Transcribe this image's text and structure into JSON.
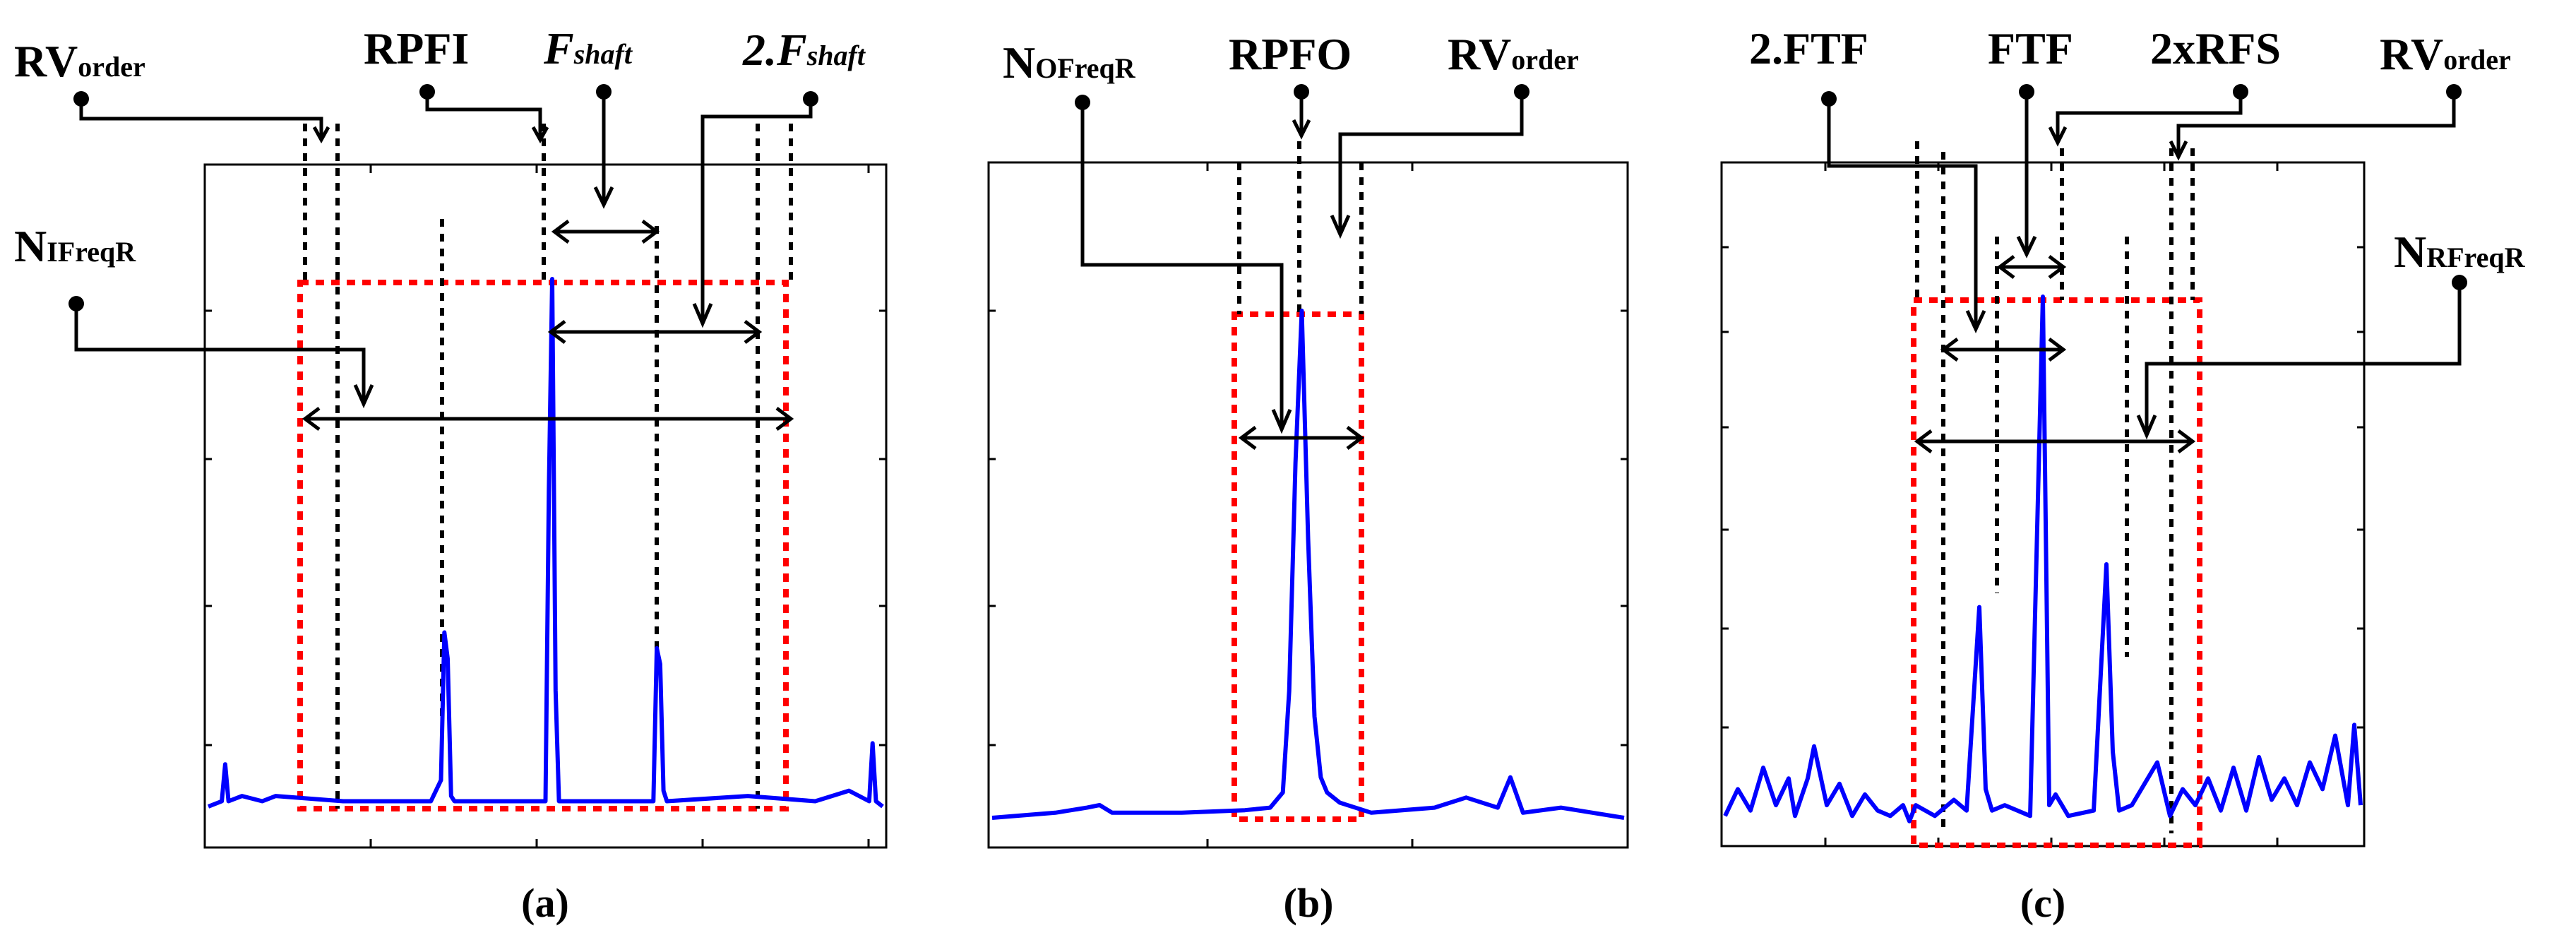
{
  "figure": {
    "colors": {
      "spectrum": "#0000ff",
      "region": "#ff0000",
      "lines": "#000000"
    },
    "panels": [
      {
        "id": "a",
        "label": "(a)",
        "labels": [
          {
            "key": "rv",
            "main": "RV",
            "sub": "order",
            "italic": false
          },
          {
            "key": "rpfi",
            "main": "RPFI",
            "sub": "",
            "italic": false
          },
          {
            "key": "fshaft",
            "main": "F",
            "sub": "shaft",
            "italic": true
          },
          {
            "key": "fshaft2",
            "main": "2.F",
            "sub": "shaft",
            "italic": true
          },
          {
            "key": "nifreq",
            "main": "N",
            "sub": "IFreqR",
            "italic": false
          }
        ],
        "spectrum": {
          "x": [
            0.0,
            0.02,
            0.025,
            0.03,
            0.05,
            0.08,
            0.1,
            0.2,
            0.33,
            0.345,
            0.35,
            0.355,
            0.36,
            0.365,
            0.42,
            0.5,
            0.505,
            0.51,
            0.515,
            0.52,
            0.6,
            0.66,
            0.665,
            0.67,
            0.675,
            0.68,
            0.8,
            0.9,
            0.95,
            0.98,
            0.985,
            0.99,
            1.0
          ],
          "y": [
            0.0,
            0.01,
            0.08,
            0.01,
            0.02,
            0.01,
            0.02,
            0.01,
            0.01,
            0.05,
            0.33,
            0.28,
            0.02,
            0.01,
            0.01,
            0.01,
            0.6,
            1.0,
            0.22,
            0.01,
            0.01,
            0.01,
            0.3,
            0.27,
            0.03,
            0.01,
            0.02,
            0.01,
            0.03,
            0.01,
            0.12,
            0.01,
            0.0
          ]
        }
      },
      {
        "id": "b",
        "label": "(b)",
        "labels": [
          {
            "key": "nofreq",
            "main": "N",
            "sub": "OFreqR",
            "italic": false
          },
          {
            "key": "rpfo",
            "main": "RPFO",
            "sub": "",
            "italic": false
          },
          {
            "key": "rv",
            "main": "RV",
            "sub": "order",
            "italic": false
          }
        ],
        "spectrum": {
          "x": [
            0.0,
            0.1,
            0.15,
            0.17,
            0.19,
            0.3,
            0.4,
            0.44,
            0.46,
            0.47,
            0.48,
            0.49,
            0.5,
            0.51,
            0.52,
            0.53,
            0.55,
            0.6,
            0.7,
            0.75,
            0.8,
            0.8,
            0.82,
            0.84,
            0.9,
            0.95,
            1.0
          ],
          "y": [
            0.0,
            0.01,
            0.02,
            0.025,
            0.01,
            0.01,
            0.015,
            0.02,
            0.05,
            0.25,
            0.7,
            1.0,
            0.55,
            0.2,
            0.08,
            0.05,
            0.03,
            0.01,
            0.02,
            0.04,
            0.02,
            0.02,
            0.08,
            0.01,
            0.02,
            0.01,
            0.0
          ]
        }
      },
      {
        "id": "c",
        "label": "(c)",
        "labels": [
          {
            "key": "ftf2",
            "main": "2.FTF",
            "sub": "",
            "italic": false
          },
          {
            "key": "ftf",
            "main": "FTF",
            "sub": "",
            "italic": false
          },
          {
            "key": "rfs2",
            "main": "2xRFS",
            "sub": "",
            "italic": false
          },
          {
            "key": "rv",
            "main": "RV",
            "sub": "order",
            "italic": false
          },
          {
            "key": "nrfreq",
            "main": "N",
            "sub": "RFreqR",
            "italic": false
          }
        ],
        "spectrum": {
          "x": [
            0.0,
            0.02,
            0.04,
            0.06,
            0.08,
            0.1,
            0.11,
            0.13,
            0.14,
            0.16,
            0.18,
            0.2,
            0.22,
            0.24,
            0.26,
            0.28,
            0.29,
            0.3,
            0.33,
            0.36,
            0.38,
            0.4,
            0.41,
            0.42,
            0.44,
            0.48,
            0.5,
            0.5,
            0.51,
            0.52,
            0.54,
            0.58,
            0.6,
            0.61,
            0.62,
            0.64,
            0.66,
            0.68,
            0.7,
            0.72,
            0.74,
            0.76,
            0.78,
            0.8,
            0.82,
            0.84,
            0.86,
            0.88,
            0.9,
            0.92,
            0.94,
            0.96,
            0.98,
            0.99,
            1.0
          ],
          "y": [
            0.03,
            0.08,
            0.04,
            0.12,
            0.05,
            0.1,
            0.03,
            0.1,
            0.16,
            0.05,
            0.09,
            0.03,
            0.07,
            0.04,
            0.03,
            0.05,
            0.02,
            0.05,
            0.03,
            0.06,
            0.04,
            0.42,
            0.08,
            0.04,
            0.05,
            0.03,
            1.0,
            1.0,
            0.05,
            0.07,
            0.03,
            0.04,
            0.5,
            0.15,
            0.04,
            0.05,
            0.09,
            0.13,
            0.03,
            0.08,
            0.05,
            0.1,
            0.04,
            0.12,
            0.04,
            0.14,
            0.06,
            0.1,
            0.05,
            0.13,
            0.08,
            0.18,
            0.05,
            0.2,
            0.05
          ]
        }
      }
    ]
  }
}
